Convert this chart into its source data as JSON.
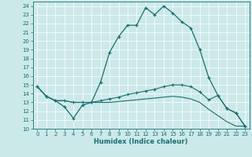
{
  "xlabel": "Humidex (Indice chaleur)",
  "x_ticks": [
    0,
    1,
    2,
    3,
    4,
    5,
    6,
    7,
    8,
    9,
    10,
    11,
    12,
    13,
    14,
    15,
    16,
    17,
    18,
    19,
    20,
    21,
    22,
    23
  ],
  "xlim": [
    -0.5,
    23.5
  ],
  "ylim": [
    10,
    24.5
  ],
  "y_ticks": [
    10,
    11,
    12,
    13,
    14,
    15,
    16,
    17,
    18,
    19,
    20,
    21,
    22,
    23,
    24
  ],
  "bg_color": "#cce9e9",
  "grid_color": "#ffffff",
  "line_color": "#1a6e6e",
  "series": {
    "main": {
      "x": [
        0,
        1,
        2,
        3,
        4,
        5,
        6,
        7,
        8,
        9,
        10,
        11,
        12,
        13,
        14,
        15,
        16,
        17,
        18,
        19,
        20,
        21,
        22,
        23
      ],
      "y": [
        14.8,
        13.7,
        13.2,
        12.5,
        11.2,
        12.7,
        13.0,
        15.3,
        18.7,
        20.5,
        21.8,
        21.8,
        23.8,
        23.0,
        24.0,
        23.2,
        22.2,
        21.5,
        19.0,
        15.8,
        13.8,
        12.3,
        11.8,
        10.3
      ]
    },
    "lower1": {
      "x": [
        0,
        1,
        2,
        3,
        4,
        5,
        6,
        7,
        8,
        9,
        10,
        11,
        12,
        13,
        14,
        15,
        16,
        17,
        18,
        19,
        20,
        21,
        22,
        23
      ],
      "y": [
        14.8,
        13.7,
        13.2,
        13.2,
        13.0,
        13.0,
        13.0,
        13.2,
        13.4,
        13.6,
        13.9,
        14.1,
        14.3,
        14.5,
        14.8,
        15.0,
        15.0,
        14.8,
        14.2,
        13.3,
        13.8,
        12.3,
        11.8,
        10.3
      ]
    },
    "lower2": {
      "x": [
        0,
        1,
        2,
        3,
        4,
        5,
        6,
        7,
        8,
        9,
        10,
        11,
        12,
        13,
        14,
        15,
        16,
        17,
        18,
        19,
        20,
        21,
        22,
        23
      ],
      "y": [
        14.8,
        13.7,
        13.2,
        13.2,
        13.0,
        13.0,
        13.0,
        13.0,
        13.0,
        13.1,
        13.2,
        13.3,
        13.4,
        13.5,
        13.6,
        13.7,
        13.6,
        13.4,
        13.0,
        12.2,
        11.5,
        10.8,
        10.3,
        10.3
      ]
    }
  }
}
